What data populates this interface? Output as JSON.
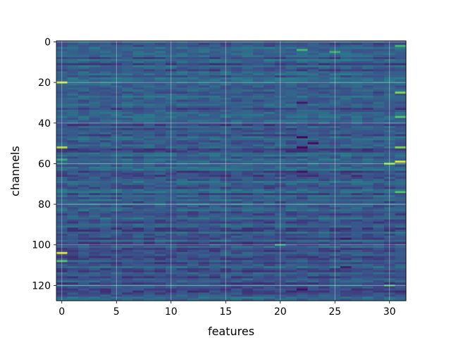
{
  "chart_data": {
    "type": "heatmap",
    "title": "",
    "xlabel": "features",
    "ylabel": "channels",
    "x_ticks": [
      0,
      5,
      10,
      15,
      20,
      25,
      30
    ],
    "y_ticks": [
      0,
      20,
      40,
      60,
      80,
      100,
      120
    ],
    "xlim": [
      -0.5,
      31.5
    ],
    "ylim": [
      127.5,
      -0.5
    ],
    "rows": 128,
    "cols": 32,
    "grid": true,
    "colormap": "viridis",
    "colors": [
      "#440154",
      "#3b528b",
      "#21918c",
      "#5ec962",
      "#fde725"
    ],
    "baseline_value": 0.28,
    "hot_cells": [
      {
        "row": 20,
        "col": 0,
        "value": 0.92
      },
      {
        "row": 52,
        "col": 0,
        "value": 0.88
      },
      {
        "row": 58,
        "col": 0,
        "value": 0.6
      },
      {
        "row": 104,
        "col": 0,
        "value": 0.95
      },
      {
        "row": 108,
        "col": 0,
        "value": 0.7
      },
      {
        "row": 5,
        "col": 25,
        "value": 0.62
      },
      {
        "row": 4,
        "col": 22,
        "value": 0.65
      },
      {
        "row": 25,
        "col": 31,
        "value": 0.8
      },
      {
        "row": 37,
        "col": 31,
        "value": 0.72
      },
      {
        "row": 52,
        "col": 31,
        "value": 0.8
      },
      {
        "row": 59,
        "col": 31,
        "value": 0.95
      },
      {
        "row": 60,
        "col": 30,
        "value": 0.82
      },
      {
        "row": 74,
        "col": 31,
        "value": 0.7
      },
      {
        "row": 2,
        "col": 31,
        "value": 0.65
      },
      {
        "row": 100,
        "col": 20,
        "value": 0.55
      },
      {
        "row": 120,
        "col": 30,
        "value": 0.6
      }
    ],
    "cold_cells": [
      {
        "row": 47,
        "col": 22,
        "value": 0.02
      },
      {
        "row": 52,
        "col": 22,
        "value": 0.03
      },
      {
        "row": 50,
        "col": 23,
        "value": 0.05
      },
      {
        "row": 64,
        "col": 22,
        "value": 0.06
      },
      {
        "row": 122,
        "col": 22,
        "value": 0.05
      },
      {
        "row": 30,
        "col": 22,
        "value": 0.08
      },
      {
        "row": 97,
        "col": 26,
        "value": 0.08
      },
      {
        "row": 111,
        "col": 26,
        "value": 0.1
      }
    ]
  }
}
